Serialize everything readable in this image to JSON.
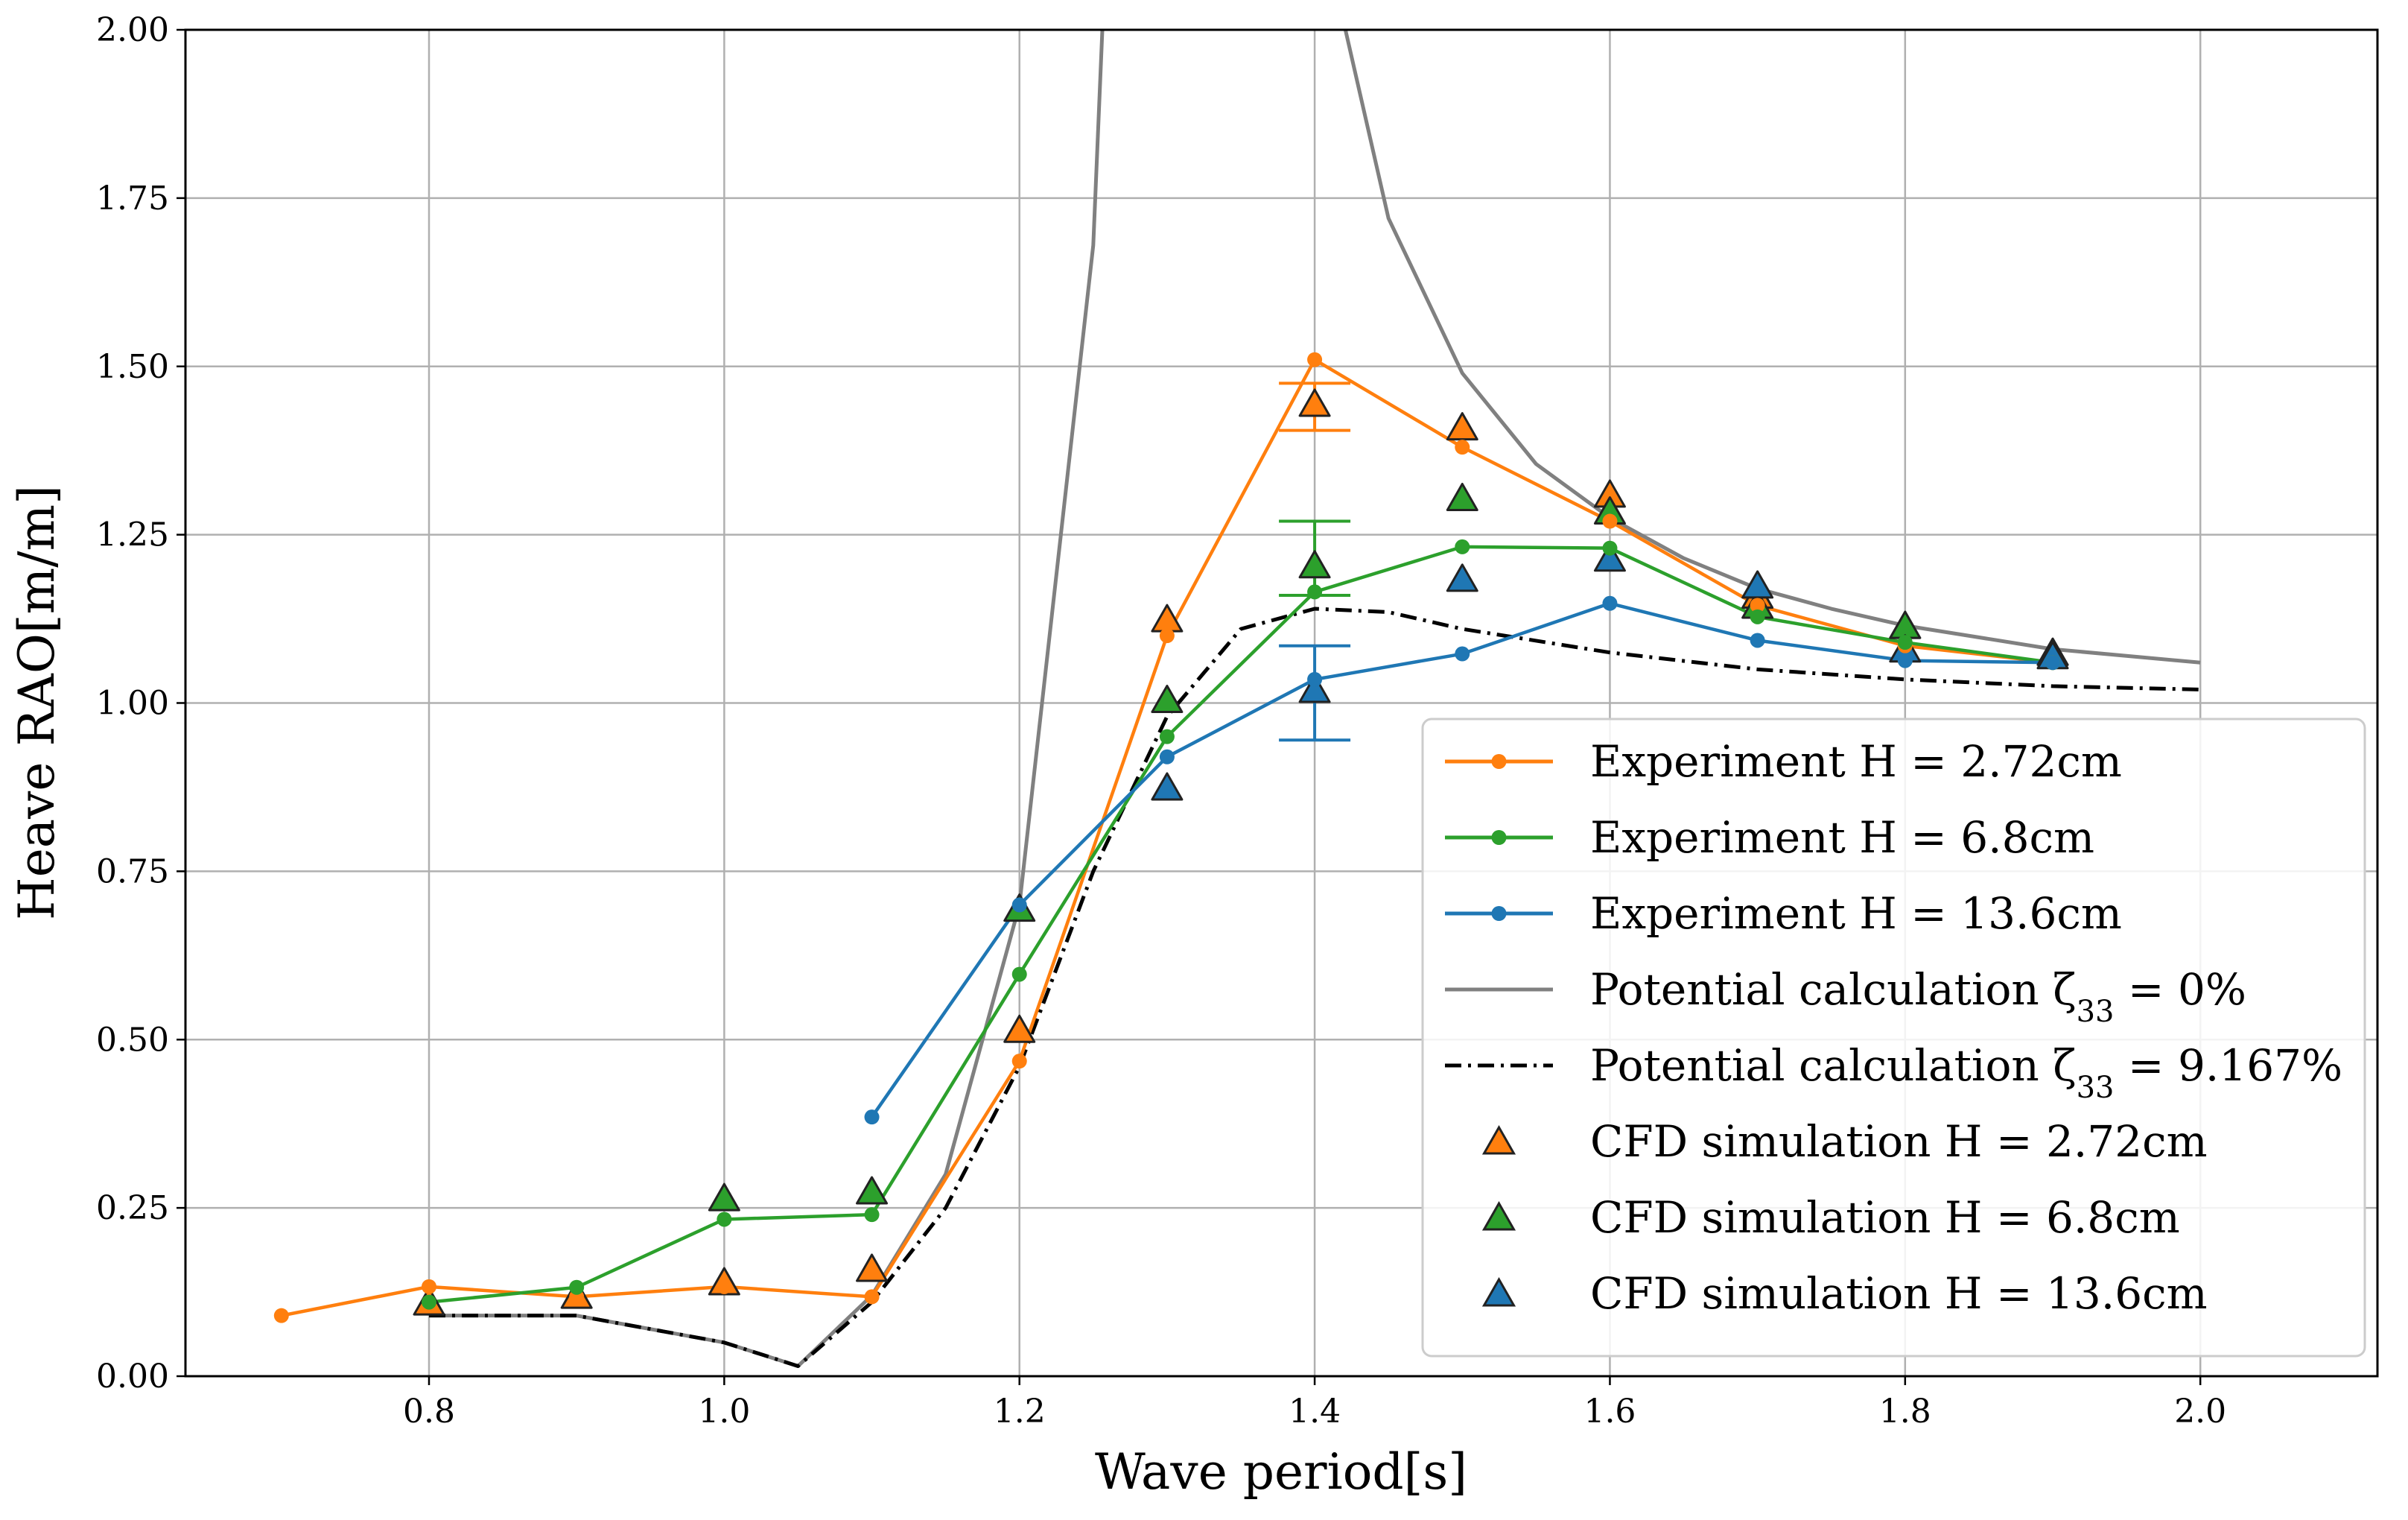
{
  "chart_data": {
    "type": "line",
    "title": "",
    "xlabel": "Wave period[s]",
    "ylabel": "Heave RAO[m/m]",
    "xlim": [
      0.635,
      2.12
    ],
    "ylim": [
      0.0,
      2.0
    ],
    "grid": true,
    "legend_position": "lower-right",
    "x_ticks": [
      0.8,
      1.0,
      1.2,
      1.4,
      1.6,
      1.8,
      2.0
    ],
    "x_tick_labels": [
      "0.8",
      "1.0",
      "1.2",
      "1.4",
      "1.6",
      "1.8",
      "2.0"
    ],
    "y_ticks": [
      0.0,
      0.25,
      0.5,
      0.75,
      1.0,
      1.25,
      1.5,
      1.75,
      2.0
    ],
    "y_tick_labels": [
      "0.00",
      "0.25",
      "0.50",
      "0.75",
      "1.00",
      "1.25",
      "1.50",
      "1.75",
      "2.00"
    ],
    "series": [
      {
        "name": "Experiment H = 2.72cm",
        "kind": "line-marker",
        "color": "#ff7f0e",
        "x": [
          0.7,
          0.8,
          0.9,
          1.0,
          1.1,
          1.2,
          1.3,
          1.4,
          1.5,
          1.6,
          1.7,
          1.8,
          1.9
        ],
        "y": [
          0.09,
          0.133,
          0.118,
          0.133,
          0.118,
          0.468,
          1.1,
          1.51,
          1.38,
          1.27,
          1.145,
          1.085,
          1.06
        ]
      },
      {
        "name": "Experiment H = 6.8cm",
        "kind": "line-marker",
        "color": "#2ca02c",
        "x": [
          0.8,
          0.9,
          1.0,
          1.1,
          1.2,
          1.3,
          1.4,
          1.5,
          1.6,
          1.7,
          1.8,
          1.9
        ],
        "y": [
          0.11,
          0.132,
          0.233,
          0.24,
          0.597,
          0.95,
          1.165,
          1.232,
          1.23,
          1.128,
          1.09,
          1.06
        ]
      },
      {
        "name": "Experiment H = 13.6cm",
        "kind": "line-marker",
        "color": "#1f77b4",
        "x": [
          1.1,
          1.2,
          1.3,
          1.4,
          1.5,
          1.6,
          1.7,
          1.8,
          1.9
        ],
        "y": [
          0.385,
          0.7,
          0.92,
          1.035,
          1.073,
          1.148,
          1.093,
          1.063,
          1.06
        ]
      },
      {
        "name": "Potential calculation ζ33 = 0%",
        "kind": "line",
        "color": "#808080",
        "dash": "",
        "x": [
          0.8,
          0.9,
          1.0,
          1.05,
          1.1,
          1.15,
          1.2,
          1.25,
          1.26,
          1.4,
          1.45,
          1.5,
          1.55,
          1.6,
          1.65,
          1.7,
          1.75,
          1.8,
          1.9,
          2.0
        ],
        "y": [
          0.09,
          0.09,
          0.05,
          0.015,
          0.12,
          0.3,
          0.7,
          1.68,
          2.2,
          2.2,
          1.72,
          1.49,
          1.355,
          1.275,
          1.215,
          1.17,
          1.14,
          1.115,
          1.08,
          1.06
        ]
      },
      {
        "name": "Potential calculation ζ33 = 9.167%",
        "kind": "line",
        "color": "#000000",
        "dash": "dashdot",
        "x": [
          0.8,
          0.9,
          1.0,
          1.05,
          1.1,
          1.15,
          1.2,
          1.25,
          1.3,
          1.35,
          1.4,
          1.45,
          1.5,
          1.6,
          1.7,
          1.8,
          1.9,
          2.0
        ],
        "y": [
          0.09,
          0.09,
          0.05,
          0.015,
          0.11,
          0.25,
          0.46,
          0.75,
          0.98,
          1.11,
          1.14,
          1.135,
          1.11,
          1.075,
          1.05,
          1.035,
          1.025,
          1.02
        ]
      },
      {
        "name": "CFD simulation H = 2.72cm",
        "kind": "triangle",
        "color": "#ff7f0e",
        "x": [
          0.8,
          0.9,
          1.0,
          1.1,
          1.2,
          1.3,
          1.4,
          1.5,
          1.6,
          1.7,
          1.8,
          1.9
        ],
        "y": [
          0.105,
          0.115,
          0.135,
          0.155,
          0.51,
          1.12,
          1.44,
          1.405,
          1.305,
          1.155,
          1.11,
          1.07
        ]
      },
      {
        "name": "CFD simulation H = 6.8cm",
        "kind": "triangle",
        "color": "#2ca02c",
        "x": [
          1.0,
          1.1,
          1.2,
          1.3,
          1.4,
          1.5,
          1.6,
          1.7,
          1.8,
          1.9
        ],
        "y": [
          0.26,
          0.27,
          0.69,
          1.0,
          1.2,
          1.3,
          1.28,
          1.14,
          1.11,
          1.07
        ]
      },
      {
        "name": "CFD simulation H = 13.6cm",
        "kind": "triangle",
        "color": "#1f77b4",
        "x": [
          1.3,
          1.4,
          1.5,
          1.6,
          1.7,
          1.8,
          1.9
        ],
        "y": [
          0.87,
          1.015,
          1.18,
          1.21,
          1.17,
          1.075,
          1.065
        ]
      }
    ],
    "error_bars": [
      {
        "color": "#ff7f0e",
        "x": 1.4,
        "y_low": 1.405,
        "y_high": 1.475
      },
      {
        "color": "#2ca02c",
        "x": 1.4,
        "y_low": 1.16,
        "y_high": 1.27
      },
      {
        "color": "#1f77b4",
        "x": 1.4,
        "y_low": 0.945,
        "y_high": 1.085
      }
    ],
    "legend": [
      {
        "label": "Experiment H = 2.72cm",
        "text": "Experiment H = 2.72cm"
      },
      {
        "label": "Experiment H = 6.8cm",
        "text": "Experiment H = 6.8cm"
      },
      {
        "label": "Experiment H = 13.6cm",
        "text": "Experiment H = 13.6cm"
      },
      {
        "label": "Potential calculation ζ33 = 0%",
        "text": "Potential calculation ζ",
        "sub": "33",
        "tail": " = 0%"
      },
      {
        "label": "Potential calculation ζ33 = 9.167%",
        "text": "Potential calculation ζ",
        "sub": "33",
        "tail": " = 9.167%"
      },
      {
        "label": "CFD simulation H = 2.72cm",
        "text": "CFD simulation H = 2.72cm"
      },
      {
        "label": "CFD simulation H = 6.8cm",
        "text": "CFD simulation H = 6.8cm"
      },
      {
        "label": "CFD simulation H = 13.6cm",
        "text": "CFD simulation H = 13.6cm"
      }
    ]
  }
}
